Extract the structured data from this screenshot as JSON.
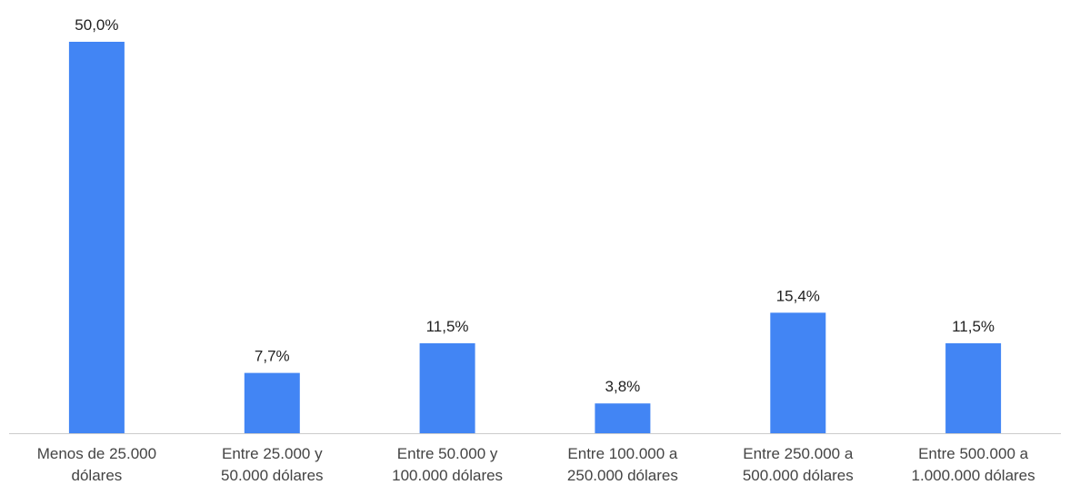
{
  "chart_data": {
    "type": "bar",
    "title": "",
    "xlabel": "",
    "ylabel": "",
    "categories": [
      [
        "Menos de 25.000",
        "dólares"
      ],
      [
        "Entre 25.000 y",
        "50.000 dólares"
      ],
      [
        "Entre 50.000 y",
        "100.000 dólares"
      ],
      [
        "Entre 100.000 a",
        "250.000 dólares"
      ],
      [
        "Entre 250.000 a",
        "500.000 dólares"
      ],
      [
        "Entre 500.000 a",
        "1.000.000 dólares"
      ]
    ],
    "values": [
      50.0,
      7.7,
      11.5,
      3.8,
      15.4,
      11.5
    ],
    "value_labels": [
      "50,0%",
      "7,7%",
      "11,5%",
      "3,8%",
      "15,4%",
      "11,5%"
    ],
    "ylim": [
      0,
      50
    ],
    "grid": false,
    "colors": {
      "bar": "#4285f4",
      "baseline": "#cccccc"
    }
  }
}
